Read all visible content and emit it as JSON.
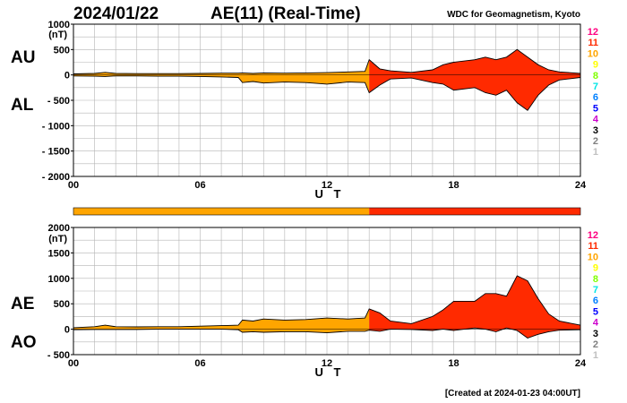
{
  "header": {
    "date": "2024/01/22",
    "title": "AE(11) (Real-Time)",
    "source": "WDC for Geomagnetism, Kyoto"
  },
  "footer": {
    "created": "[Created at 2024-01-23 04:00UT]"
  },
  "level_colors": [
    {
      "level": "12",
      "color": "#ff0080"
    },
    {
      "level": "11",
      "color": "#ff2a00"
    },
    {
      "level": "10",
      "color": "#ffa500"
    },
    {
      "level": "9",
      "color": "#ffff00"
    },
    {
      "level": "8",
      "color": "#80ff00"
    },
    {
      "level": "7",
      "color": "#00e5e5"
    },
    {
      "level": "6",
      "color": "#0080ff"
    },
    {
      "level": "5",
      "color": "#0000ff"
    },
    {
      "level": "4",
      "color": "#cc00cc"
    },
    {
      "level": "3",
      "color": "#000000"
    },
    {
      "level": "2",
      "color": "#808080"
    },
    {
      "level": "1",
      "color": "#c0c0c0"
    }
  ],
  "chart_data": [
    {
      "type": "area",
      "panel": "AU/AL",
      "labels": {
        "upper": "AU",
        "lower": "AL"
      },
      "ylabel": "(nT)",
      "xlabel": "U T",
      "ylim": [
        -2000,
        1000
      ],
      "yticks": [
        "1000",
        "500",
        "0",
        "- 500",
        "- 1000",
        "- 1500",
        "- 2000"
      ],
      "xlim": [
        0,
        24
      ],
      "xticks": [
        "00",
        "06",
        "12",
        "18",
        "24"
      ],
      "grid": true,
      "x": [
        0,
        1,
        1.5,
        2,
        3,
        4,
        5,
        6,
        7,
        7.8,
        8,
        8.5,
        9,
        10,
        11,
        12,
        13,
        13.8,
        14,
        14.5,
        15,
        16,
        17,
        17.5,
        18,
        19,
        19.5,
        20,
        20.5,
        21,
        21.5,
        22,
        22.5,
        23,
        24
      ],
      "au": [
        20,
        30,
        50,
        30,
        25,
        25,
        25,
        30,
        35,
        35,
        40,
        30,
        40,
        35,
        40,
        45,
        60,
        70,
        300,
        120,
        80,
        50,
        100,
        200,
        250,
        300,
        350,
        300,
        350,
        500,
        350,
        200,
        100,
        60,
        30
      ],
      "al": [
        -20,
        -25,
        -30,
        -20,
        -20,
        -25,
        -25,
        -30,
        -40,
        -50,
        -150,
        -130,
        -160,
        -140,
        -150,
        -180,
        -140,
        -150,
        -350,
        -200,
        -80,
        -60,
        -150,
        -180,
        -300,
        -250,
        -350,
        -400,
        -300,
        -550,
        -700,
        -400,
        -200,
        -100,
        -50
      ]
    },
    {
      "type": "area",
      "panel": "AE/AO",
      "labels": {
        "upper": "AE",
        "lower": "AO"
      },
      "ylabel": "(nT)",
      "xlabel": "U T",
      "ylim": [
        -500,
        2000
      ],
      "yticks": [
        "2000",
        "1500",
        "1000",
        "500",
        "0",
        "- 500"
      ],
      "xlim": [
        0,
        24
      ],
      "xticks": [
        "00",
        "06",
        "12",
        "18",
        "24"
      ],
      "grid": true,
      "x": [
        0,
        1,
        1.5,
        2,
        3,
        4,
        5,
        6,
        7,
        7.8,
        8,
        8.5,
        9,
        10,
        11,
        12,
        13,
        13.8,
        14,
        14.5,
        15,
        16,
        17,
        17.5,
        18,
        19,
        19.5,
        20,
        20.5,
        21,
        21.5,
        22,
        22.5,
        23,
        24
      ],
      "ae": [
        30,
        50,
        80,
        50,
        45,
        50,
        50,
        60,
        70,
        80,
        180,
        160,
        200,
        180,
        190,
        220,
        200,
        220,
        400,
        320,
        160,
        110,
        250,
        380,
        550,
        550,
        700,
        700,
        650,
        1050,
        950,
        600,
        300,
        160,
        80
      ],
      "ao": [
        -10,
        -5,
        -5,
        -5,
        -5,
        0,
        0,
        0,
        0,
        -10,
        -60,
        -50,
        -60,
        -50,
        -50,
        -70,
        -40,
        -40,
        -20,
        -40,
        0,
        -5,
        -25,
        0,
        -25,
        25,
        0,
        -50,
        25,
        -25,
        -175,
        -100,
        -50,
        -20,
        -10
      ]
    }
  ],
  "activity_bar": [
    {
      "from": 0,
      "to": 14.0,
      "level": "10"
    },
    {
      "from": 14.0,
      "to": 24,
      "level": "11"
    }
  ]
}
